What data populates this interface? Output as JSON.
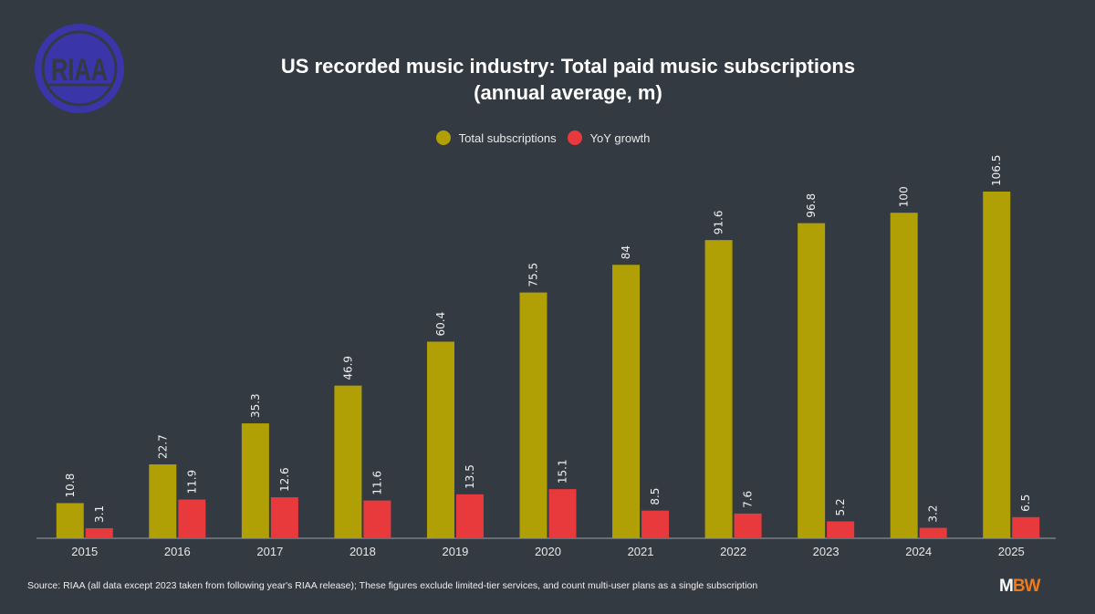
{
  "logo_text": "RIAA",
  "brand": {
    "m": "M",
    "bw": "BW"
  },
  "chart_data": {
    "type": "bar",
    "title_line1": "US recorded music industry: Total paid music subscriptions",
    "title_line2": "(annual average, m)",
    "categories": [
      "2015",
      "2016",
      "2017",
      "2018",
      "2019",
      "2020",
      "2021",
      "2022",
      "2023",
      "2024",
      "2025"
    ],
    "series": [
      {
        "name": "Total subscriptions",
        "color": "#b0a005",
        "values": [
          10.8,
          22.7,
          35.3,
          46.9,
          60.4,
          75.5,
          84,
          91.6,
          96.8,
          100,
          106.5
        ]
      },
      {
        "name": "YoY growth",
        "color": "#e8393d",
        "values": [
          3.1,
          11.9,
          12.6,
          11.6,
          13.5,
          15.1,
          8.5,
          7.6,
          5.2,
          3.2,
          6.5
        ]
      }
    ],
    "ylim": [
      0,
      106.5
    ],
    "legend_position": "top-center",
    "grid": false
  },
  "source": "Source: RIAA (all data except 2023 taken from following year's RIAA release); These figures exclude limited-tier services, and count multi-user plans as a single subscription"
}
